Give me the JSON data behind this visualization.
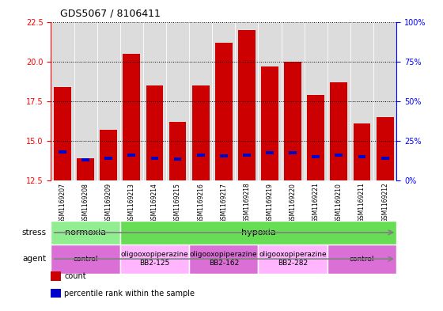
{
  "title": "GDS5067 / 8106411",
  "samples": [
    "GSM1169207",
    "GSM1169208",
    "GSM1169209",
    "GSM1169213",
    "GSM1169214",
    "GSM1169215",
    "GSM1169216",
    "GSM1169217",
    "GSM1169218",
    "GSM1169219",
    "GSM1169220",
    "GSM1169221",
    "GSM1169210",
    "GSM1169211",
    "GSM1169212"
  ],
  "count_values": [
    18.4,
    13.9,
    15.7,
    20.5,
    18.5,
    16.2,
    18.5,
    21.2,
    22.0,
    19.7,
    20.0,
    17.9,
    18.7,
    16.1,
    16.5
  ],
  "percentile_values": [
    14.3,
    13.8,
    13.9,
    14.1,
    13.9,
    13.85,
    14.1,
    14.05,
    14.1,
    14.25,
    14.25,
    14.0,
    14.1,
    14.0,
    13.9
  ],
  "bar_bottom": 12.5,
  "ylim_left": [
    12.5,
    22.5
  ],
  "ylim_right": [
    0,
    100
  ],
  "yticks_left": [
    12.5,
    15.0,
    17.5,
    20.0,
    22.5
  ],
  "yticks_right": [
    0,
    25,
    50,
    75,
    100
  ],
  "ytick_labels_right": [
    "0%",
    "25%",
    "50%",
    "75%",
    "100%"
  ],
  "bar_color": "#cc0000",
  "percentile_color": "#0000cc",
  "bg_color": "#ffffff",
  "plot_bg_color": "#dcdcdc",
  "stress_groups": [
    {
      "label": "normoxia",
      "start": 0,
      "end": 3,
      "color": "#90ee90"
    },
    {
      "label": "hypoxia",
      "start": 3,
      "end": 15,
      "color": "#66dd55"
    }
  ],
  "agent_groups": [
    {
      "label": "control",
      "start": 0,
      "end": 3,
      "color": "#da70d6"
    },
    {
      "label": "oligooxopiperazine\nBB2-125",
      "start": 3,
      "end": 6,
      "color": "#ffb6ff"
    },
    {
      "label": "oligooxopiperazine\nBB2-162",
      "start": 6,
      "end": 9,
      "color": "#da70d6"
    },
    {
      "label": "oligooxopiperazine\nBB2-282",
      "start": 9,
      "end": 12,
      "color": "#ffb6ff"
    },
    {
      "label": "control",
      "start": 12,
      "end": 15,
      "color": "#da70d6"
    }
  ],
  "legend_items": [
    {
      "label": "count",
      "color": "#cc0000"
    },
    {
      "label": "percentile rank within the sample",
      "color": "#0000cc"
    }
  ]
}
